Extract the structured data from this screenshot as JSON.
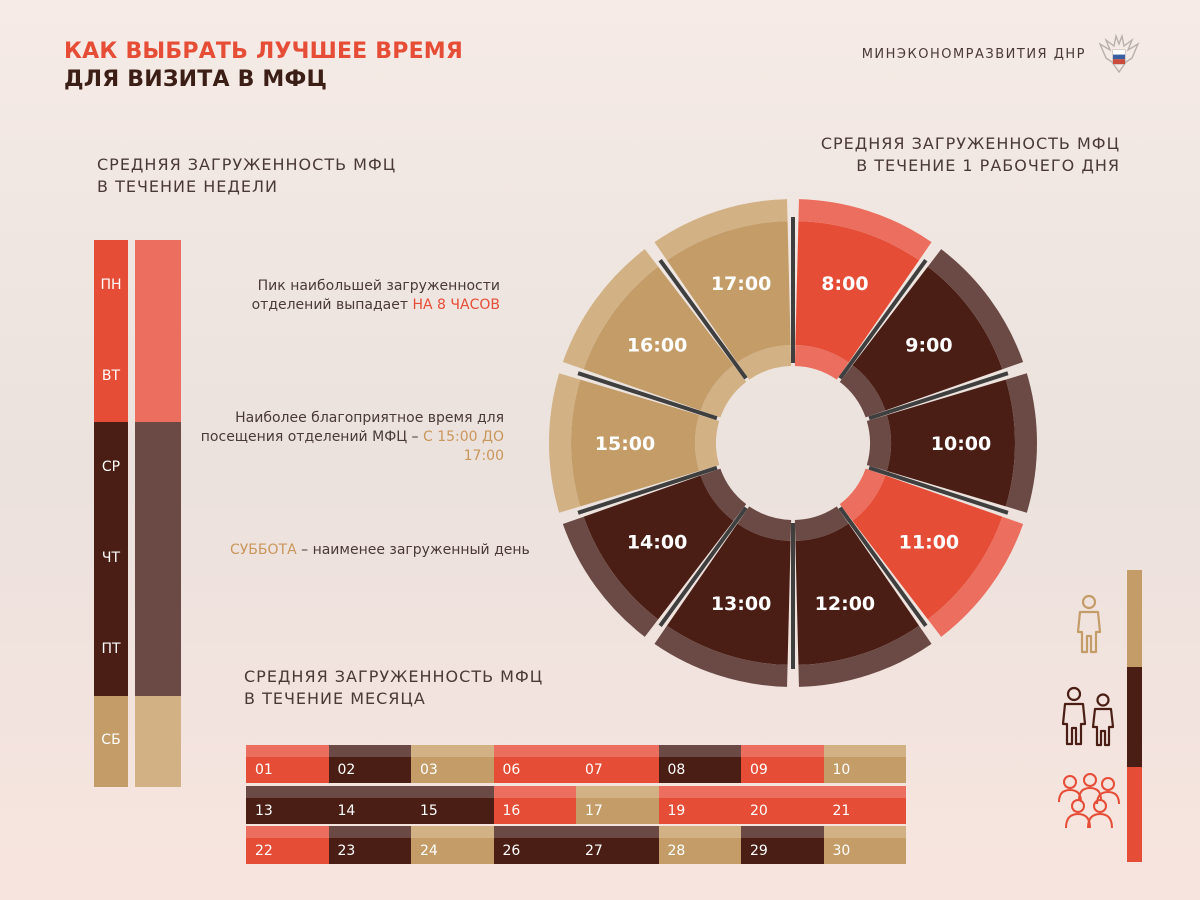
{
  "header": {
    "title_line1": "КАК ВЫБРАТЬ ЛУЧШЕЕ ВРЕМЯ",
    "title_line2": "ДЛЯ ВИЗИТА В МФЦ",
    "brand": "МИНЭКОНОМРАЗВИТИЯ ДНР",
    "emblem_icon": "dnr-coat-of-arms-icon"
  },
  "week": {
    "heading_line1": "СРЕДНЯЯ ЗАГРУЖЕННОСТЬ МФЦ",
    "heading_line2": "В ТЕЧЕНИЕ НЕДЕЛИ",
    "days": [
      "ПН",
      "ВТ",
      "СР",
      "ЧТ",
      "ПТ",
      "СБ"
    ],
    "levels": [
      "high",
      "high",
      "medium",
      "medium",
      "medium",
      "low"
    ]
  },
  "day": {
    "heading_line1": "СРЕДНЯЯ ЗАГРУЖЕННОСТЬ МФЦ",
    "heading_line2": "В ТЕЧЕНИЕ 1 РАБОЧЕГО ДНЯ"
  },
  "month": {
    "heading_line1": "СРЕДНЯЯ ЗАГРУЖЕННОСТЬ МФЦ",
    "heading_line2": "В ТЕЧЕНИЕ МЕСЯЦА",
    "rows": [
      [
        {
          "d": "01",
          "level": "high"
        },
        {
          "d": "02",
          "level": "medium"
        },
        {
          "d": "03",
          "level": "low"
        },
        {
          "d": "06",
          "level": "high"
        },
        {
          "d": "07",
          "level": "high"
        },
        {
          "d": "08",
          "level": "medium"
        },
        {
          "d": "09",
          "level": "high"
        },
        {
          "d": "10",
          "level": "low"
        }
      ],
      [
        {
          "d": "13",
          "level": "medium"
        },
        {
          "d": "14",
          "level": "medium"
        },
        {
          "d": "15",
          "level": "medium"
        },
        {
          "d": "16",
          "level": "high"
        },
        {
          "d": "17",
          "level": "low"
        },
        {
          "d": "19",
          "level": "high"
        },
        {
          "d": "20",
          "level": "high"
        },
        {
          "d": "21",
          "level": "high"
        }
      ],
      [
        {
          "d": "22",
          "level": "high"
        },
        {
          "d": "23",
          "level": "medium"
        },
        {
          "d": "24",
          "level": "low"
        },
        {
          "d": "26",
          "level": "medium"
        },
        {
          "d": "27",
          "level": "medium"
        },
        {
          "d": "28",
          "level": "low"
        },
        {
          "d": "29",
          "level": "medium"
        },
        {
          "d": "30",
          "level": "low"
        }
      ]
    ]
  },
  "notes": {
    "peak_text": "Пик наибольшей загруженности отделений выпадает",
    "peak_highlight": "НА 8 ЧАСОВ",
    "best_text": "Наиболее благоприятное время для посещения отделений МФЦ –",
    "best_highlight": "С 15:00 ДО 17:00",
    "sat_highlight": "СУББОТА",
    "sat_text": "– наименее загруженный день"
  },
  "legend": {
    "items": [
      {
        "level": "low",
        "icon": "one-person-icon"
      },
      {
        "level": "medium",
        "icon": "two-people-icon"
      },
      {
        "level": "high",
        "icon": "crowd-icon"
      }
    ]
  },
  "colors": {
    "high": "#e64d36",
    "high_light": "#ec6e5e",
    "medium": "#4a1e14",
    "medium_light": "#6b4a45",
    "low": "#c39c68",
    "low_light": "#d2b184",
    "text": "#4a3a36"
  },
  "chart_data": [
    {
      "type": "pie",
      "title": "СРЕДНЯЯ ЗАГРУЖЕННОСТЬ МФЦ В ТЕЧЕНИЕ 1 РАБОЧЕГО ДНЯ",
      "categories": [
        "8:00",
        "9:00",
        "10:00",
        "11:00",
        "12:00",
        "13:00",
        "14:00",
        "15:00",
        "16:00",
        "17:00"
      ],
      "levels": [
        "high",
        "medium",
        "medium",
        "high",
        "medium",
        "medium",
        "medium",
        "low",
        "low",
        "low"
      ]
    }
  ]
}
